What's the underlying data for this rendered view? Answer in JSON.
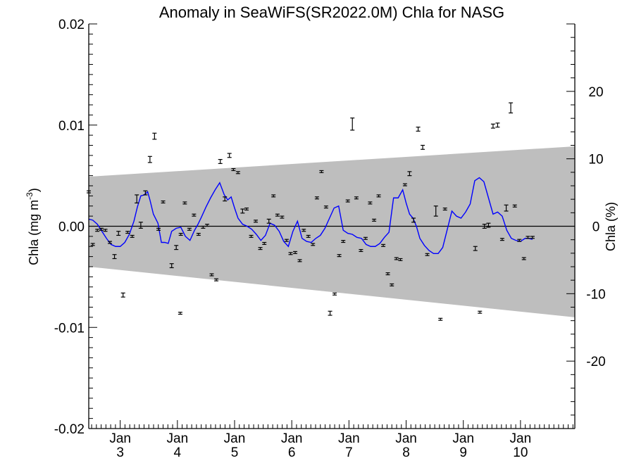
{
  "chart_data": {
    "type": "scatter",
    "title": "Anomaly in SeaWiFS(SR2022.0M) Chla for NASG",
    "ylabel_main": "Chla (mg m",
    "ylabel_sup": "-3",
    "ylabel_end": ")",
    "y2label": "Chla (%)",
    "ylim": [
      -0.02,
      0.02
    ],
    "y2lim": [
      -30,
      30
    ],
    "y_ticks": [
      "0.02",
      "0.01",
      "0.00",
      "-0.01",
      "-0.02"
    ],
    "y_tick_values": [
      0.02,
      0.01,
      0.0,
      -0.01,
      -0.02
    ],
    "y2_ticks": [
      "20",
      "10",
      "0",
      "-10",
      "-20"
    ],
    "y2_tick_values": [
      20,
      10,
      0,
      -10,
      -20
    ],
    "xlim": [
      2.45,
      10.95
    ],
    "x_ticks": [
      {
        "month": "Jan",
        "year": "3",
        "x": 3.0
      },
      {
        "month": "Jan",
        "year": "4",
        "x": 4.0
      },
      {
        "month": "Jan",
        "year": "5",
        "x": 5.0
      },
      {
        "month": "Jan",
        "year": "6",
        "x": 6.0
      },
      {
        "month": "Jan",
        "year": "7",
        "x": 7.0
      },
      {
        "month": "Jan",
        "year": "8",
        "x": 8.0
      },
      {
        "month": "Jan",
        "year": "9",
        "x": 9.0
      },
      {
        "month": "Jan",
        "year": "10",
        "x": 10.0
      }
    ],
    "uncertainty_band": {
      "color": "#bebebe",
      "upper": [
        [
          2.45,
          0.0049
        ],
        [
          10.95,
          0.0079
        ]
      ],
      "lower": [
        [
          2.45,
          -0.004
        ],
        [
          10.95,
          -0.009
        ]
      ]
    },
    "points": [
      [
        2.45,
        0.0034,
        0.0001
      ],
      [
        2.52,
        -0.0018,
        0.0001
      ],
      [
        2.6,
        -0.0004,
        0.0001
      ],
      [
        2.67,
        -0.0003,
        0.0001
      ],
      [
        2.74,
        -0.0004,
        0.0001
      ],
      [
        2.82,
        -0.0016,
        0.0001
      ],
      [
        2.9,
        -0.003,
        0.0002
      ],
      [
        2.97,
        -0.0007,
        0.0002
      ],
      [
        3.05,
        -0.0068,
        0.0002
      ],
      [
        3.13,
        -0.0006,
        0.0001
      ],
      [
        3.21,
        -0.001,
        0.0001
      ],
      [
        3.29,
        0.0027,
        0.0004
      ],
      [
        3.36,
        0.0001,
        0.0003
      ],
      [
        3.44,
        0.0033,
        0.0002
      ],
      [
        3.52,
        0.0066,
        0.0003
      ],
      [
        3.6,
        0.0089,
        0.0003
      ],
      [
        3.67,
        -0.0003,
        0.0001
      ],
      [
        3.75,
        0.0024,
        0.0001
      ],
      [
        3.9,
        -0.0039,
        0.0002
      ],
      [
        3.98,
        -0.0021,
        0.0002
      ],
      [
        4.06,
        -0.0008,
        0.0001
      ],
      [
        4.13,
        0.0023,
        0.0001
      ],
      [
        4.21,
        -0.0003,
        0.0001
      ],
      [
        4.29,
        0.0011,
        0.0001
      ],
      [
        4.37,
        -0.0008,
        0.0001
      ],
      [
        4.45,
        -0.0001,
        0.0001
      ],
      [
        4.52,
        0.0001,
        0.0001
      ],
      [
        4.05,
        -0.0086,
        0.0001
      ],
      [
        4.6,
        -0.0048,
        0.0001
      ],
      [
        4.68,
        -0.0053,
        0.0001
      ],
      [
        4.75,
        0.0064,
        0.0002
      ],
      [
        4.83,
        0.0027,
        0.0002
      ],
      [
        4.91,
        0.007,
        0.0002
      ],
      [
        4.98,
        0.0056,
        0.0001
      ],
      [
        5.06,
        0.0053,
        0.0001
      ],
      [
        5.14,
        0.0015,
        0.0002
      ],
      [
        5.21,
        0.0017,
        0.0001
      ],
      [
        5.29,
        -0.001,
        0.0001
      ],
      [
        5.37,
        0.0005,
        0.0001
      ],
      [
        5.45,
        -0.0022,
        0.0001
      ],
      [
        5.52,
        -0.0017,
        0.0001
      ],
      [
        5.6,
        0.0005,
        0.0002
      ],
      [
        5.68,
        0.003,
        0.0001
      ],
      [
        5.75,
        0.0011,
        0.0001
      ],
      [
        5.83,
        0.0009,
        0.0001
      ],
      [
        5.91,
        -0.0014,
        0.0001
      ],
      [
        5.98,
        -0.0027,
        0.0001
      ],
      [
        6.06,
        -0.0026,
        0.0001
      ],
      [
        6.14,
        -0.0034,
        0.0001
      ],
      [
        6.21,
        -0.0004,
        0.0001
      ],
      [
        6.29,
        -0.001,
        0.0001
      ],
      [
        6.37,
        -0.0018,
        0.0001
      ],
      [
        6.44,
        0.0028,
        0.0001
      ],
      [
        6.52,
        0.0054,
        0.0001
      ],
      [
        6.6,
        0.0019,
        0.0001
      ],
      [
        6.67,
        -0.0086,
        0.0002
      ],
      [
        6.75,
        -0.0067,
        0.0001
      ],
      [
        6.83,
        -0.0029,
        0.0001
      ],
      [
        6.9,
        -0.0015,
        0.0001
      ],
      [
        6.98,
        0.0025,
        0.0001
      ],
      [
        7.06,
        0.0101,
        0.0006
      ],
      [
        7.13,
        0.0028,
        0.0001
      ],
      [
        7.21,
        -0.0024,
        0.0001
      ],
      [
        7.29,
        -0.0012,
        0.0001
      ],
      [
        7.37,
        0.0023,
        0.0001
      ],
      [
        7.44,
        0.0006,
        0.0001
      ],
      [
        7.52,
        0.003,
        0.0001
      ],
      [
        7.6,
        -0.0019,
        0.0001
      ],
      [
        7.68,
        -0.0047,
        0.0001
      ],
      [
        7.75,
        -0.0058,
        0.0001
      ],
      [
        7.83,
        -0.0032,
        0.0001
      ],
      [
        7.9,
        -0.0033,
        0.0001
      ],
      [
        7.98,
        0.0041,
        0.0001
      ],
      [
        8.06,
        0.0052,
        0.0002
      ],
      [
        8.13,
        0.0006,
        0.0002
      ],
      [
        8.21,
        0.0096,
        0.0002
      ],
      [
        8.29,
        0.0078,
        0.0002
      ],
      [
        8.37,
        -0.0028,
        0.0001
      ],
      [
        8.52,
        0.0015,
        0.0005
      ],
      [
        8.6,
        -0.0092,
        0.0001
      ],
      [
        8.68,
        0.0017,
        0.0001
      ],
      [
        9.21,
        -0.0022,
        0.0002
      ],
      [
        9.29,
        -0.0085,
        0.0001
      ],
      [
        9.37,
        0.0,
        0.0002
      ],
      [
        9.44,
        0.0001,
        0.0002
      ],
      [
        9.52,
        0.0099,
        0.0002
      ],
      [
        9.6,
        0.01,
        0.0002
      ],
      [
        9.68,
        -0.0013,
        0.0001
      ],
      [
        9.75,
        0.0018,
        0.0003
      ],
      [
        9.83,
        0.0117,
        0.0005
      ],
      [
        9.9,
        0.002,
        0.0001
      ],
      [
        9.98,
        -0.0014,
        0.0001
      ],
      [
        10.06,
        -0.0032,
        0.0001
      ],
      [
        10.13,
        -0.0011,
        0.0001
      ],
      [
        10.21,
        -0.0011,
        0.0001
      ]
    ],
    "series": [
      {
        "color": "#0000ff",
        "x": [
          2.45,
          2.52,
          2.6,
          2.68,
          2.76,
          2.84,
          2.92,
          3.0,
          3.08,
          3.16,
          3.24,
          3.3,
          3.36,
          3.42,
          3.48,
          3.52,
          3.58,
          3.66,
          3.72,
          3.78,
          3.84,
          3.9,
          3.98,
          4.06,
          4.14,
          4.22,
          4.3,
          4.36,
          4.42,
          4.5,
          4.58,
          4.66,
          4.74,
          4.82,
          4.88,
          4.94,
          5.0,
          5.06,
          5.14,
          5.22,
          5.3,
          5.38,
          5.46,
          5.54,
          5.62,
          5.7,
          5.78,
          5.86,
          5.94,
          6.02,
          6.1,
          6.18,
          6.26,
          6.34,
          6.42,
          6.5,
          6.58,
          6.66,
          6.74,
          6.82,
          6.9,
          6.98,
          7.06,
          7.14,
          7.22,
          7.3,
          7.38,
          7.46,
          7.54,
          7.62,
          7.7,
          7.78,
          7.86,
          7.94,
          8.0,
          8.06,
          8.12,
          8.18,
          8.24,
          8.32,
          8.4,
          8.48,
          8.56,
          8.64,
          8.72,
          8.8,
          8.88,
          8.96,
          9.04,
          9.12,
          9.2,
          9.28,
          9.36,
          9.44,
          9.52,
          9.6,
          9.68,
          9.76,
          9.84,
          9.92,
          10.0,
          10.08,
          10.14,
          10.21
        ],
        "y": [
          0.0007,
          0.0006,
          0.0002,
          -0.0005,
          -0.0012,
          -0.0018,
          -0.002,
          -0.002,
          -0.0016,
          -0.0008,
          0.0005,
          0.0019,
          0.003,
          0.0031,
          0.0034,
          0.0026,
          0.0012,
          0.0003,
          -0.0016,
          -0.0016,
          -0.0017,
          -0.0005,
          -0.0002,
          -0.0001,
          -0.001,
          -0.0014,
          -0.0004,
          0.0002,
          0.0009,
          0.0019,
          0.0028,
          0.0036,
          0.0043,
          0.0031,
          0.0026,
          0.0029,
          0.0018,
          0.0008,
          0.0002,
          0.0,
          -0.0003,
          -0.0008,
          -0.0014,
          -0.0009,
          0.0003,
          0.0001,
          -0.0005,
          -0.0015,
          -0.002,
          -0.0005,
          0.0005,
          -0.0012,
          -0.0015,
          -0.0016,
          -0.0012,
          -0.0009,
          -0.0002,
          0.0008,
          0.0018,
          0.002,
          -0.0004,
          -0.0007,
          -0.0008,
          -0.0011,
          -0.0012,
          -0.0018,
          -0.002,
          -0.002,
          -0.0017,
          -0.0011,
          -0.0006,
          0.0028,
          0.0028,
          0.0036,
          0.0023,
          0.0012,
          0.0008,
          0.0,
          -0.0012,
          -0.0019,
          -0.0024,
          -0.0027,
          -0.0027,
          -0.0021,
          -0.0003,
          0.0015,
          0.001,
          0.0008,
          0.0014,
          0.0022,
          0.0045,
          0.0048,
          0.0044,
          0.0028,
          0.0012,
          0.0014,
          0.001,
          -0.0004,
          -0.0012,
          -0.0014,
          -0.0015,
          -0.0012,
          -0.0012,
          -0.0013
        ]
      }
    ]
  }
}
